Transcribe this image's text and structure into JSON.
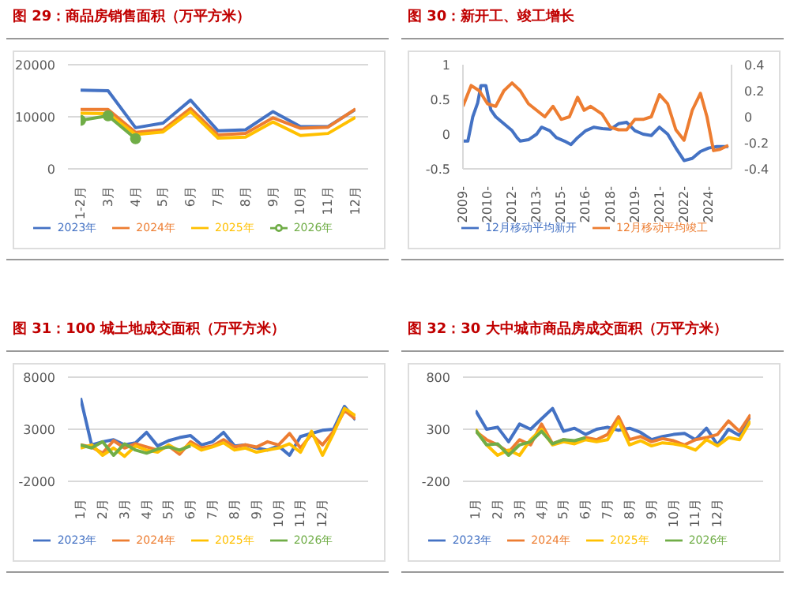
{
  "chart_data": [
    {
      "type": "line",
      "title": "图 29：商品房销售面积（万平方米）",
      "categories": [
        "1-2月",
        "3月",
        "4月",
        "5月",
        "6月",
        "7月",
        "8月",
        "9月",
        "10月",
        "11月",
        "12月"
      ],
      "ylim": [
        0,
        20000
      ],
      "yticks": [
        0,
        10000,
        20000
      ],
      "grid": "y",
      "legend": "bottom",
      "series": [
        {
          "name": "2023年",
          "color": "#4472c4",
          "values": [
            15100,
            15000,
            7900,
            8800,
            13200,
            7300,
            7500,
            11000,
            8100,
            8100,
            11400
          ]
        },
        {
          "name": "2024年",
          "color": "#ed7d31",
          "values": [
            11400,
            11400,
            7000,
            7500,
            11600,
            6500,
            6800,
            9800,
            7800,
            8000,
            11500
          ]
        },
        {
          "name": "2025年",
          "color": "#ffc000",
          "values": [
            10700,
            10600,
            6600,
            7100,
            11000,
            5900,
            6100,
            9000,
            6400,
            6800,
            9900
          ]
        },
        {
          "name": "2026年",
          "color": "#70ad47",
          "marker": "circle",
          "values": [
            9300,
            10200,
            5800,
            null,
            null,
            null,
            null,
            null,
            null,
            null,
            null
          ]
        }
      ]
    },
    {
      "type": "line",
      "title": "图 30：新开工、竣工增长",
      "xlim": [
        2009,
        2025.4
      ],
      "xticks": [
        {
          "value": 2009,
          "label": "2009-"
        },
        {
          "value": 2010.5,
          "label": "2010-"
        },
        {
          "value": 2012,
          "label": "2012-"
        },
        {
          "value": 2013.5,
          "label": "2013-"
        },
        {
          "value": 2015,
          "label": "2015-"
        },
        {
          "value": 2016.5,
          "label": "2016-"
        },
        {
          "value": 2018,
          "label": "2018-"
        },
        {
          "value": 2019.5,
          "label": "2019-"
        },
        {
          "value": 2021,
          "label": "2021-"
        },
        {
          "value": 2022.5,
          "label": "2022-"
        },
        {
          "value": 2024,
          "label": "2024-"
        }
      ],
      "ylim": [
        -0.5,
        1
      ],
      "yticks": [
        -0.5,
        0,
        0.5,
        1
      ],
      "y2lim": [
        -0.4,
        0.4
      ],
      "y2ticks": [
        -0.4,
        -0.2,
        0,
        0.2,
        0.4
      ],
      "legend": "bottom",
      "series": [
        {
          "name": "12月移动平均新开",
          "color": "#4472c4",
          "x": [
            2009,
            2009.3,
            2009.6,
            2009.9,
            2010.1,
            2010.4,
            2010.7,
            2011,
            2011.5,
            2012,
            2012.3,
            2012.5,
            2013,
            2013.5,
            2013.8,
            2014.3,
            2014.7,
            2015.2,
            2015.6,
            2016,
            2016.5,
            2017,
            2017.5,
            2018,
            2018.5,
            2019,
            2019.5,
            2020,
            2020.5,
            2021,
            2021.5,
            2022,
            2022.5,
            2023,
            2023.5,
            2024,
            2024.5,
            2025.2
          ],
          "values": [
            -0.1,
            -0.1,
            0.25,
            0.45,
            0.7,
            0.7,
            0.35,
            0.25,
            0.15,
            0.05,
            -0.05,
            -0.1,
            -0.08,
            0,
            0.1,
            0.05,
            -0.05,
            -0.1,
            -0.15,
            -0.05,
            0.05,
            0.1,
            0.08,
            0.07,
            0.15,
            0.17,
            0.05,
            0,
            -0.02,
            0.1,
            0,
            -0.2,
            -0.38,
            -0.35,
            -0.25,
            -0.2,
            -0.18,
            -0.18
          ]
        },
        {
          "name": "12月移动平均竣工",
          "color": "#ed7d31",
          "axis": "y2",
          "x": [
            2009,
            2009.5,
            2010,
            2010.5,
            2011,
            2011.5,
            2012,
            2012.5,
            2013,
            2013.5,
            2014,
            2014.5,
            2015,
            2015.5,
            2016,
            2016.4,
            2016.8,
            2017.5,
            2018,
            2018.5,
            2019,
            2019.5,
            2020,
            2020.5,
            2021,
            2021.5,
            2022,
            2022.5,
            2023,
            2023.5,
            2023.9,
            2024.3,
            2024.7,
            2025.2
          ],
          "values": [
            0.08,
            0.24,
            0.2,
            0.1,
            0.08,
            0.2,
            0.26,
            0.2,
            0.1,
            0.05,
            0,
            0.08,
            -0.02,
            0,
            0.15,
            0.05,
            0.08,
            0.02,
            -0.08,
            -0.1,
            -0.1,
            -0.02,
            -0.02,
            0,
            0.17,
            0.1,
            -0.1,
            -0.18,
            0.05,
            0.18,
            0,
            -0.26,
            -0.25,
            -0.22
          ]
        }
      ]
    },
    {
      "type": "line",
      "title": "图 31：100 城土地成交面积（万平方米）",
      "categories": [
        "1月",
        null,
        "2月",
        null,
        "3月",
        null,
        "4月",
        null,
        "5月",
        null,
        "6月",
        null,
        "7月",
        null,
        "8月",
        null,
        "9月",
        null,
        "10月",
        null,
        "11月",
        null,
        "12月",
        null,
        null,
        null
      ],
      "ylim": [
        -2000,
        8000
      ],
      "yticks": [
        -2000,
        3000,
        8000
      ],
      "grid": "y",
      "legend": "bottom",
      "series": [
        {
          "name": "2023年",
          "color": "#4472c4",
          "values": [
            6000,
            1500,
            1800,
            2000,
            1500,
            1700,
            2700,
            1400,
            1900,
            2200,
            2400,
            1500,
            1800,
            2700,
            1400,
            1500,
            1200,
            1000,
            1400,
            500,
            2300,
            2600,
            2900,
            3000,
            5200,
            3900
          ]
        },
        {
          "name": "2024年",
          "color": "#ed7d31",
          "values": [
            1500,
            1300,
            700,
            1900,
            1200,
            1600,
            1300,
            1000,
            1400,
            600,
            1800,
            1200,
            1400,
            2000,
            1300,
            1500,
            1300,
            1800,
            1500,
            2600,
            1200,
            2500,
            1500,
            2800,
            4800,
            4000
          ]
        },
        {
          "name": "2025年",
          "color": "#ffc000",
          "values": [
            1200,
            1500,
            500,
            1200,
            400,
            1400,
            1000,
            800,
            1500,
            900,
            1600,
            1000,
            1300,
            1700,
            1000,
            1200,
            800,
            1000,
            1200,
            1600,
            800,
            2800,
            500,
            2600,
            5000,
            4300
          ]
        },
        {
          "name": "2026年",
          "color": "#70ad47",
          "values": [
            1500,
            1200,
            1800,
            500,
            1600,
            1000,
            700,
            1100,
            1300,
            1000,
            1400,
            null,
            null,
            null,
            null,
            null,
            null,
            null,
            null,
            null,
            null,
            null,
            null,
            null,
            null,
            null
          ]
        }
      ]
    },
    {
      "type": "line",
      "title": "图 32：30 大中城市商品房成交面积（万平方米）",
      "categories": [
        "1月",
        null,
        "2月",
        null,
        "3月",
        null,
        "4月",
        null,
        "5月",
        null,
        "6月",
        null,
        "7月",
        null,
        "8月",
        null,
        "9月",
        null,
        "10月",
        null,
        "11月",
        null,
        "12月",
        null,
        null,
        null
      ],
      "ylim": [
        -200,
        800
      ],
      "yticks": [
        -200,
        300,
        800
      ],
      "grid": "y",
      "legend": "bottom",
      "series": [
        {
          "name": "2023年",
          "color": "#4472c4",
          "values": [
            480,
            300,
            320,
            180,
            350,
            300,
            400,
            500,
            280,
            310,
            250,
            300,
            320,
            290,
            310,
            270,
            200,
            230,
            250,
            260,
            200,
            310,
            150,
            300,
            240,
            430
          ]
        },
        {
          "name": "2024年",
          "color": "#ed7d31",
          "values": [
            280,
            200,
            150,
            80,
            200,
            150,
            350,
            160,
            200,
            180,
            220,
            200,
            250,
            420,
            200,
            230,
            180,
            210,
            190,
            150,
            200,
            220,
            250,
            380,
            280,
            440
          ]
        },
        {
          "name": "2025年",
          "color": "#ffc000",
          "values": [
            300,
            150,
            50,
            100,
            50,
            200,
            300,
            150,
            180,
            160,
            200,
            180,
            200,
            380,
            150,
            190,
            140,
            170,
            160,
            140,
            100,
            200,
            140,
            220,
            200,
            380
          ]
        },
        {
          "name": "2026年",
          "color": "#70ad47",
          "values": [
            290,
            150,
            160,
            50,
            150,
            180,
            280,
            160,
            200,
            190,
            220,
            null,
            null,
            null,
            null,
            null,
            null,
            null,
            null,
            null,
            null,
            null,
            null,
            null,
            null,
            null
          ]
        }
      ]
    }
  ]
}
